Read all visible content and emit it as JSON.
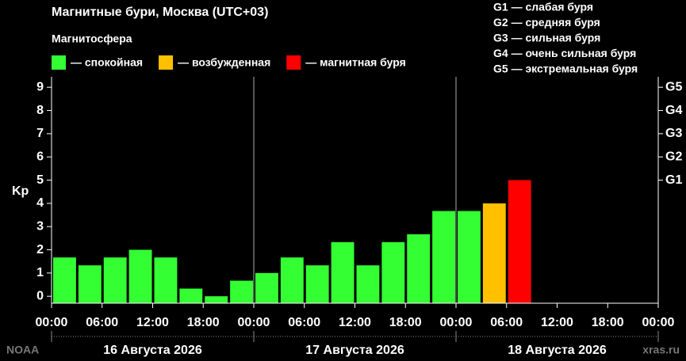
{
  "chart_data": {
    "type": "bar",
    "title": "Магнитные бури, Москва (UTC+03)",
    "legend_title": "Магнитосфера",
    "legend": [
      {
        "name": "— спокойная",
        "color": "#33ff33"
      },
      {
        "name": "— возбужденная",
        "color": "#ffc000"
      },
      {
        "name": "— магнитная буря",
        "color": "#ff0000"
      }
    ],
    "scale_notes": [
      "G1 — слабая буря",
      "G2 — средняя буря",
      "G3 — сильная буря",
      "G4 — очень сильная буря",
      "G5 — экстремальная буря"
    ],
    "y_label": "Kp",
    "x": [
      0,
      3,
      6,
      9,
      12,
      15,
      18,
      21,
      24,
      27,
      30,
      33,
      36,
      39,
      42,
      45,
      48,
      51,
      54,
      57,
      60,
      63,
      66
    ],
    "values": [
      1.67,
      1.33,
      1.67,
      2.0,
      1.67,
      0.33,
      0.0,
      0.67,
      1.0,
      1.67,
      1.33,
      2.33,
      1.33,
      2.33,
      2.67,
      3.67,
      3.67,
      4.0,
      5.0,
      null,
      null,
      null,
      null
    ],
    "colors": [
      "#33ff33",
      "#33ff33",
      "#33ff33",
      "#33ff33",
      "#33ff33",
      "#33ff33",
      "#33ff33",
      "#33ff33",
      "#33ff33",
      "#33ff33",
      "#33ff33",
      "#33ff33",
      "#33ff33",
      "#33ff33",
      "#33ff33",
      "#33ff33",
      "#33ff33",
      "#ffc000",
      "#ff0000",
      null,
      null,
      null,
      null
    ],
    "bar_hours": 3,
    "xlim": [
      0,
      72
    ],
    "xticks": [
      {
        "value": 0,
        "label": "00:00"
      },
      {
        "value": 6,
        "label": "06:00"
      },
      {
        "value": 12,
        "label": "12:00"
      },
      {
        "value": 18,
        "label": "18:00"
      },
      {
        "value": 24,
        "label": "00:00"
      },
      {
        "value": 30,
        "label": "06:00"
      },
      {
        "value": 36,
        "label": "12:00"
      },
      {
        "value": 42,
        "label": "18:00"
      },
      {
        "value": 48,
        "label": "00:00"
      },
      {
        "value": 54,
        "label": "06:00"
      },
      {
        "value": 60,
        "label": "12:00"
      },
      {
        "value": 66,
        "label": "18:00"
      },
      {
        "value": 72,
        "label": "00:00"
      }
    ],
    "days": [
      "16 Августа 2026",
      "17 Августа 2026",
      "18 Августа 2026"
    ],
    "ylim": [
      -0.3,
      9.45
    ],
    "yticks": [
      0,
      1,
      2,
      3,
      4,
      5,
      6,
      7,
      8,
      9
    ],
    "y2lim": [
      -0.3,
      9.45
    ],
    "y2ticks": [
      {
        "value": 5,
        "label": "G1"
      },
      {
        "value": 6,
        "label": "G2"
      },
      {
        "value": 7,
        "label": "G3"
      },
      {
        "value": 8,
        "label": "G4"
      },
      {
        "value": 9,
        "label": "G5"
      }
    ],
    "source": "NOAA",
    "site": "xras.ru"
  }
}
